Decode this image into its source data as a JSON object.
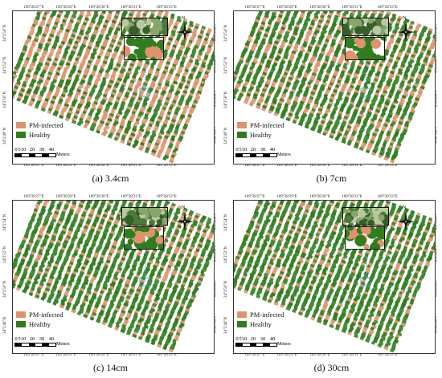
{
  "panels": [
    {
      "caption": "(a) 3.4cm",
      "infected_level": 0.45
    },
    {
      "caption": "(b) 7cm",
      "infected_level": 0.3
    },
    {
      "caption": "(c) 14cm",
      "infected_level": 0.22
    },
    {
      "caption": "(d) 30cm",
      "infected_level": 0.18
    }
  ],
  "axis_top": [
    "109°28'27\"E",
    "109°28'29\"E",
    "109°28'30\"E",
    "109°28'31\"E",
    "109°28'33\"E"
  ],
  "axis_bottom": [
    "109°28'27\"E",
    "109°28'29\"E",
    "109°28'30\"E",
    "109°28'31\"E",
    "109°28'33\"E"
  ],
  "axis_left": [
    "34°2'54\"N",
    "34°2'52\"N",
    "34°2'50\"N",
    "34°2'49\"N"
  ],
  "axis_right": [
    "34°2'54\"N",
    "34°2'52\"N",
    "34°2'50\"N",
    "34°2'49\"N"
  ],
  "legend": {
    "items": [
      {
        "label": "PM-infected",
        "color": "#e0926e"
      },
      {
        "label": "Healthy",
        "color": "#2f7d1e"
      }
    ]
  },
  "scale_bar": {
    "ticks": [
      "0",
      "5",
      "10",
      "20",
      "30",
      "40"
    ],
    "unit": "Meters"
  },
  "north_arrow": {
    "label": "N"
  },
  "colors": {
    "infected": "#e0926e",
    "healthy": "#2f7d1e",
    "frame": "#333333"
  }
}
